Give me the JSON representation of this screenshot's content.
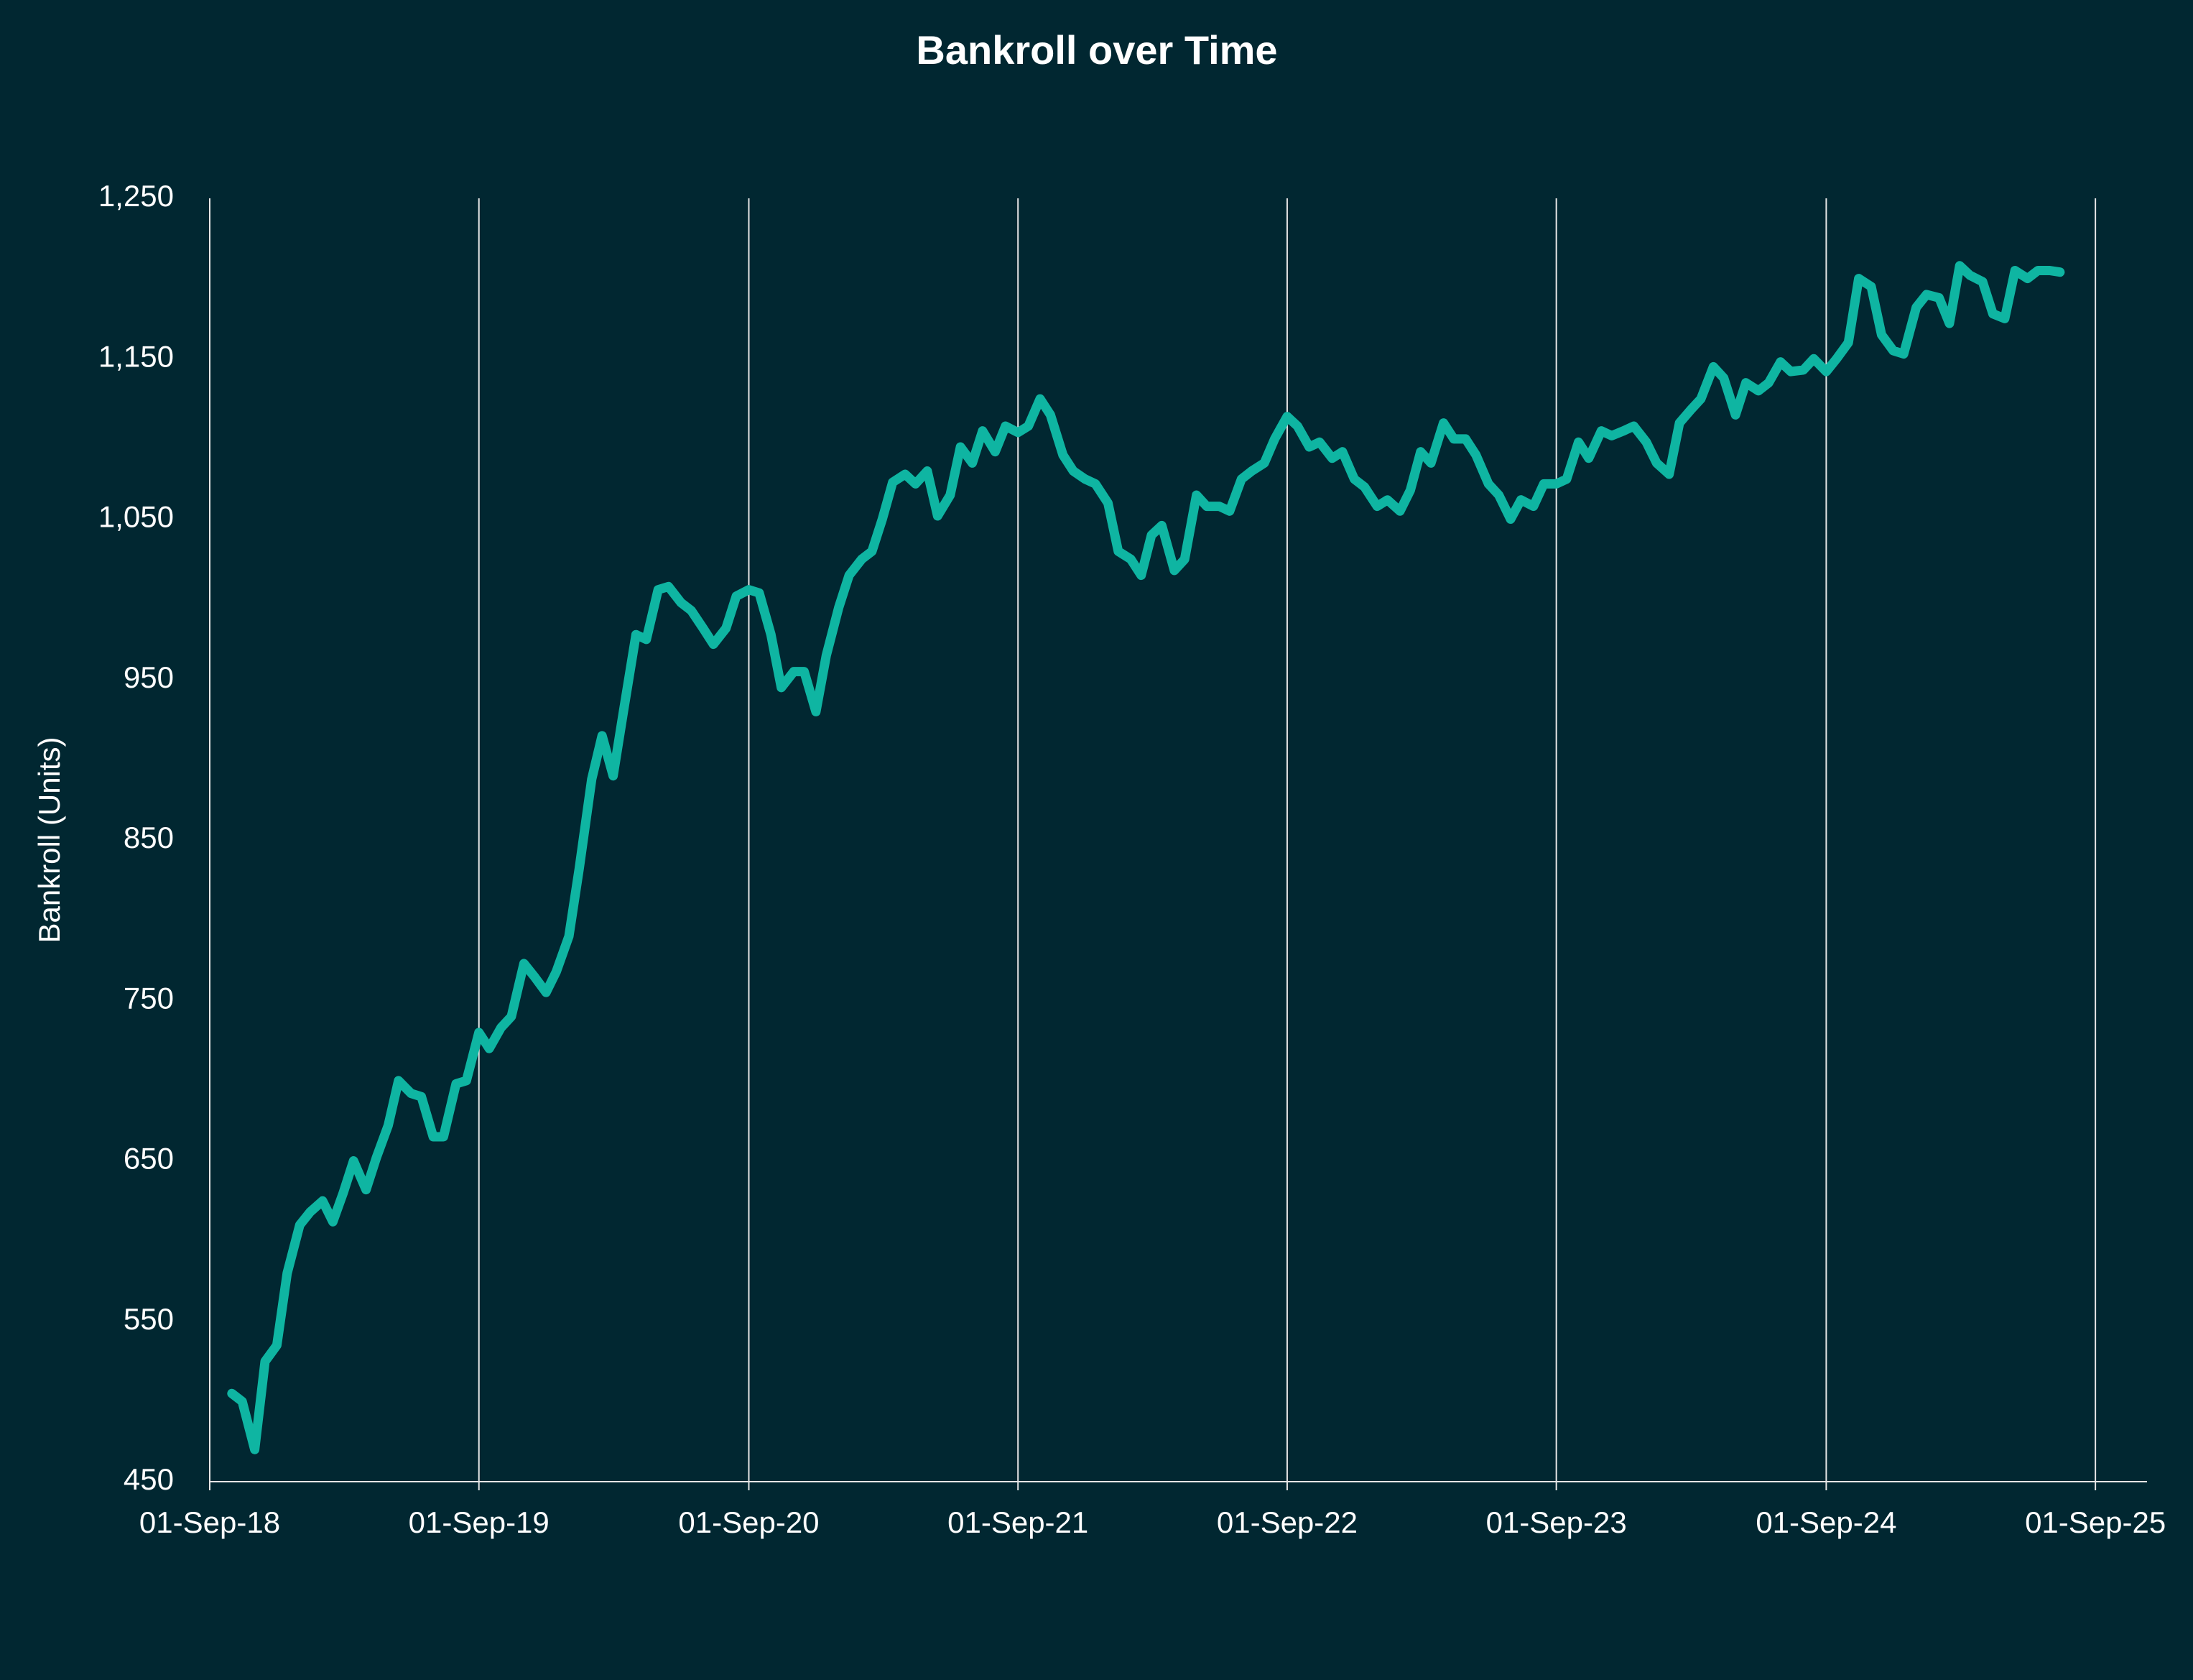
{
  "chart_data": {
    "type": "line",
    "title": "Bankroll over Time",
    "y_label": "Bankroll (Units)",
    "color": "#0fb5a2",
    "grid_x": true,
    "xlim": [
      "2018-09-01",
      "2025-11-10"
    ],
    "xticks": [
      {
        "value": "2018-09-01",
        "label": "01-Sep-18"
      },
      {
        "value": "2019-09-01",
        "label": "01-Sep-19"
      },
      {
        "value": "2020-09-01",
        "label": "01-Sep-20"
      },
      {
        "value": "2021-09-01",
        "label": "01-Sep-21"
      },
      {
        "value": "2022-09-01",
        "label": "01-Sep-22"
      },
      {
        "value": "2023-09-01",
        "label": "01-Sep-23"
      },
      {
        "value": "2024-09-01",
        "label": "01-Sep-24"
      },
      {
        "value": "2025-09-01",
        "label": "01-Sep-25"
      }
    ],
    "ylim": [
      450,
      1250
    ],
    "yticks": [
      450,
      550,
      650,
      750,
      850,
      950,
      {
        "value": 1050,
        "label": "1,050"
      },
      {
        "value": 1150,
        "label": "1,150"
      },
      {
        "value": 1250,
        "label": "1,250"
      }
    ],
    "x": [
      "2018-10-01",
      "2018-10-15",
      "2018-11-01",
      "2018-11-15",
      "2018-12-01",
      "2018-12-15",
      "2019-01-01",
      "2019-01-15",
      "2019-02-01",
      "2019-02-15",
      "2019-03-01",
      "2019-03-15",
      "2019-04-01",
      "2019-04-15",
      "2019-05-01",
      "2019-05-15",
      "2019-06-01",
      "2019-06-15",
      "2019-07-01",
      "2019-07-15",
      "2019-08-01",
      "2019-08-15",
      "2019-09-01",
      "2019-09-15",
      "2019-10-01",
      "2019-10-15",
      "2019-11-01",
      "2019-11-15",
      "2019-12-01",
      "2019-12-15",
      "2020-01-01",
      "2020-01-15",
      "2020-02-01",
      "2020-02-15",
      "2020-03-01",
      "2020-03-15",
      "2020-04-01",
      "2020-04-15",
      "2020-05-01",
      "2020-05-15",
      "2020-06-01",
      "2020-06-15",
      "2020-07-01",
      "2020-07-15",
      "2020-08-01",
      "2020-08-15",
      "2020-09-01",
      "2020-09-15",
      "2020-10-01",
      "2020-10-15",
      "2020-11-01",
      "2020-11-15",
      "2020-12-01",
      "2020-12-15",
      "2021-01-01",
      "2021-01-15",
      "2021-02-01",
      "2021-02-15",
      "2021-03-01",
      "2021-03-15",
      "2021-04-01",
      "2021-04-15",
      "2021-05-01",
      "2021-05-15",
      "2021-06-01",
      "2021-06-15",
      "2021-07-01",
      "2021-07-15",
      "2021-08-01",
      "2021-08-15",
      "2021-09-01",
      "2021-09-15",
      "2021-10-01",
      "2021-10-15",
      "2021-11-01",
      "2021-11-15",
      "2021-12-01",
      "2021-12-15",
      "2022-01-01",
      "2022-01-15",
      "2022-02-01",
      "2022-02-15",
      "2022-03-01",
      "2022-03-15",
      "2022-04-01",
      "2022-04-15",
      "2022-05-01",
      "2022-05-15",
      "2022-06-01",
      "2022-06-15",
      "2022-07-01",
      "2022-07-15",
      "2022-08-01",
      "2022-08-15",
      "2022-09-01",
      "2022-09-15",
      "2022-10-01",
      "2022-10-15",
      "2022-11-01",
      "2022-11-15",
      "2022-12-01",
      "2022-12-15",
      "2023-01-01",
      "2023-01-15",
      "2023-02-01",
      "2023-02-15",
      "2023-03-01",
      "2023-03-15",
      "2023-04-01",
      "2023-04-15",
      "2023-05-01",
      "2023-05-15",
      "2023-06-01",
      "2023-06-15",
      "2023-07-01",
      "2023-07-15",
      "2023-08-01",
      "2023-08-15",
      "2023-09-01",
      "2023-09-15",
      "2023-10-01",
      "2023-10-15",
      "2023-11-01",
      "2023-11-15",
      "2023-12-01",
      "2023-12-15",
      "2024-01-01",
      "2024-01-15",
      "2024-02-01",
      "2024-02-15",
      "2024-03-01",
      "2024-03-15",
      "2024-04-01",
      "2024-04-15",
      "2024-05-01",
      "2024-05-15",
      "2024-06-01",
      "2024-06-15",
      "2024-07-01",
      "2024-07-15",
      "2024-08-01",
      "2024-08-15",
      "2024-09-01",
      "2024-09-15",
      "2024-10-01",
      "2024-10-15",
      "2024-11-01",
      "2024-11-15",
      "2024-12-01",
      "2024-12-15",
      "2025-01-01",
      "2025-01-15",
      "2025-02-01",
      "2025-02-15",
      "2025-03-01",
      "2025-03-15",
      "2025-04-01",
      "2025-04-15",
      "2025-05-01",
      "2025-05-15",
      "2025-06-01",
      "2025-06-15",
      "2025-07-01",
      "2025-07-15"
    ],
    "values": [
      505,
      500,
      470,
      525,
      535,
      580,
      610,
      618,
      625,
      612,
      630,
      650,
      632,
      652,
      672,
      700,
      692,
      690,
      665,
      665,
      698,
      700,
      730,
      720,
      733,
      740,
      773,
      765,
      755,
      768,
      790,
      832,
      888,
      915,
      890,
      930,
      978,
      975,
      1006,
      1008,
      998,
      993,
      982,
      972,
      982,
      1002,
      1006,
      1004,
      978,
      945,
      955,
      955,
      930,
      965,
      995,
      1015,
      1025,
      1030,
      1050,
      1073,
      1078,
      1072,
      1080,
      1052,
      1065,
      1095,
      1085,
      1105,
      1092,
      1108,
      1104,
      1108,
      1125,
      1115,
      1090,
      1080,
      1075,
      1072,
      1060,
      1030,
      1025,
      1015,
      1040,
      1046,
      1018,
      1025,
      1065,
      1058,
      1058,
      1055,
      1075,
      1080,
      1085,
      1100,
      1114,
      1108,
      1095,
      1098,
      1088,
      1092,
      1075,
      1070,
      1058,
      1062,
      1055,
      1068,
      1092,
      1085,
      1110,
      1100,
      1100,
      1090,
      1072,
      1065,
      1050,
      1062,
      1058,
      1072,
      1072,
      1075,
      1098,
      1088,
      1105,
      1102,
      1105,
      1108,
      1098,
      1085,
      1078,
      1110,
      1118,
      1125,
      1145,
      1138,
      1115,
      1135,
      1130,
      1135,
      1148,
      1142,
      1143,
      1150,
      1142,
      1150,
      1160,
      1200,
      1195,
      1165,
      1155,
      1153,
      1182,
      1190,
      1188,
      1172,
      1208,
      1202,
      1198,
      1178,
      1175,
      1205,
      1200,
      1205,
      1205,
      1204
    ]
  }
}
